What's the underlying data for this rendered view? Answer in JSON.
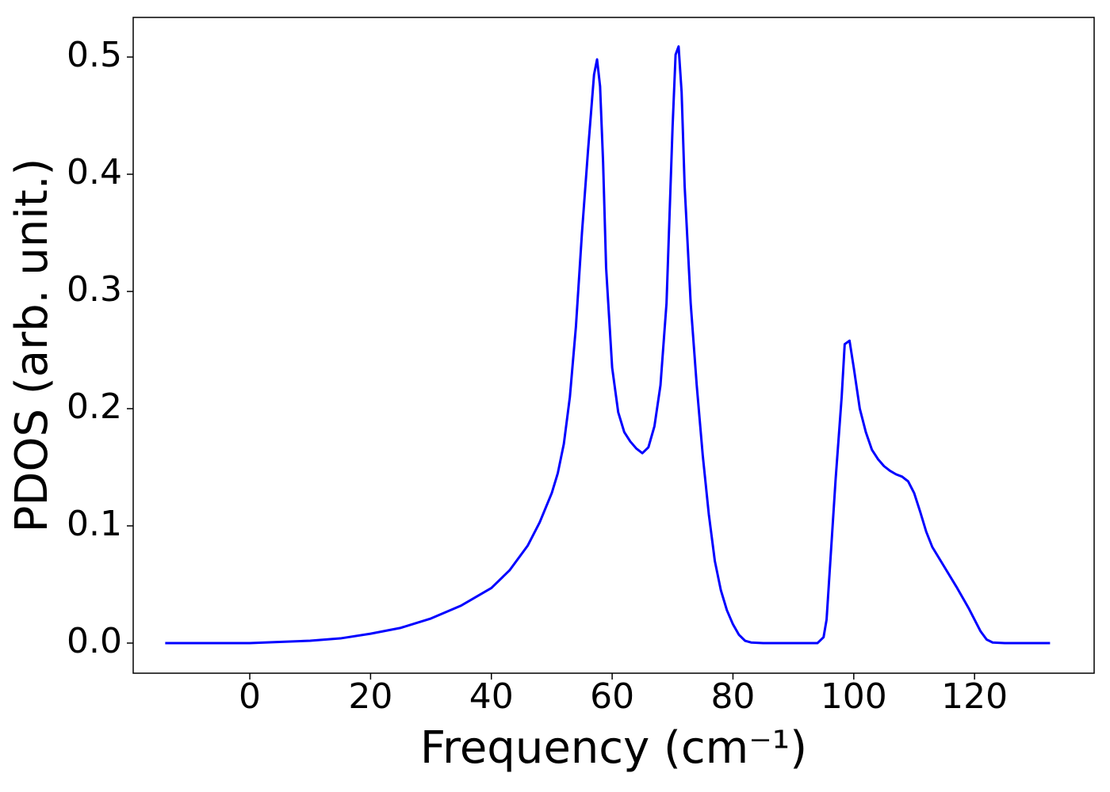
{
  "chart_data": {
    "type": "line",
    "xlabel": "Frequency (cm⁻¹)",
    "ylabel": "PDOS (arb. unit.)",
    "xlim": [
      -19.3,
      139.8
    ],
    "ylim": [
      -0.0257,
      0.5338
    ],
    "xticks": [
      0,
      20,
      40,
      60,
      80,
      100,
      120
    ],
    "yticks": [
      {
        "value": 0,
        "label": "0.0"
      },
      0.1,
      0.2,
      0.3,
      0.4,
      0.5
    ],
    "grid": false,
    "series": [
      {
        "color": "#0000ff",
        "x": [
          -14,
          -10,
          -5,
          0,
          5,
          10,
          15,
          20,
          25,
          30,
          35,
          40,
          43,
          46,
          48,
          50,
          51,
          52,
          53,
          54,
          55,
          56,
          57,
          57.5,
          58,
          58.5,
          59,
          60,
          61,
          62,
          63,
          64,
          65,
          66,
          67,
          68,
          69,
          70,
          70.5,
          71,
          71.5,
          72,
          73,
          74,
          75,
          76,
          77,
          78,
          79,
          80,
          81,
          82,
          83,
          85,
          90,
          94,
          95,
          95.5,
          96,
          97,
          98,
          98.5,
          99.3,
          100,
          101,
          102,
          103,
          104,
          105,
          106,
          107,
          108,
          109,
          110,
          111,
          112,
          113,
          115,
          117,
          119,
          121,
          122,
          123,
          125,
          130,
          132.5
        ],
        "values": [
          0,
          0,
          0,
          0,
          0.001,
          0.002,
          0.004,
          0.008,
          0.013,
          0.021,
          0.032,
          0.047,
          0.062,
          0.083,
          0.103,
          0.128,
          0.145,
          0.17,
          0.21,
          0.27,
          0.35,
          0.42,
          0.485,
          0.498,
          0.475,
          0.41,
          0.32,
          0.235,
          0.197,
          0.18,
          0.172,
          0.166,
          0.162,
          0.167,
          0.185,
          0.22,
          0.29,
          0.44,
          0.502,
          0.509,
          0.47,
          0.39,
          0.29,
          0.22,
          0.16,
          0.11,
          0.07,
          0.045,
          0.028,
          0.016,
          0.007,
          0.002,
          0.0005,
          0,
          0,
          0,
          0.005,
          0.02,
          0.06,
          0.14,
          0.21,
          0.255,
          0.258,
          0.235,
          0.2,
          0.18,
          0.165,
          0.157,
          0.151,
          0.147,
          0.144,
          0.142,
          0.138,
          0.128,
          0.112,
          0.095,
          0.082,
          0.065,
          0.048,
          0.03,
          0.01,
          0.003,
          0.0005,
          0,
          0,
          0
        ]
      }
    ]
  }
}
